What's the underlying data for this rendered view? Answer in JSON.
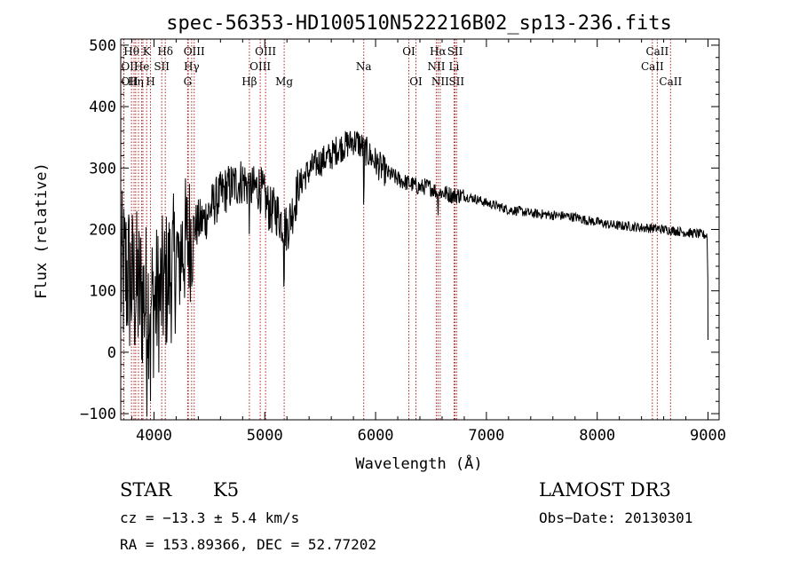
{
  "chart_data": {
    "type": "line",
    "title": "spec-56353-HD100510N522216B02_sp13-236.fits",
    "xlabel": "Wavelength (Å)",
    "ylabel": "Flux (relative)",
    "xlim": [
      3700,
      9100
    ],
    "ylim": [
      -110,
      510
    ],
    "xticks": [
      4000,
      5000,
      6000,
      7000,
      8000,
      9000
    ],
    "yticks": [
      -100,
      0,
      100,
      200,
      300,
      400,
      500
    ],
    "line_color": "#000000",
    "marker_color": "#b22222",
    "spectrum_profile": {
      "x": [
        3700,
        3750,
        3800,
        3850,
        3900,
        3950,
        4000,
        4050,
        4100,
        4150,
        4200,
        4250,
        4300,
        4350,
        4400,
        4450,
        4500,
        4550,
        4600,
        4650,
        4700,
        4750,
        4800,
        4850,
        4900,
        4950,
        5000,
        5050,
        5100,
        5150,
        5200,
        5250,
        5300,
        5350,
        5400,
        5450,
        5500,
        5550,
        5600,
        5650,
        5700,
        5750,
        5800,
        5850,
        5900,
        5950,
        6000,
        6050,
        6100,
        6150,
        6200,
        6250,
        6300,
        6350,
        6400,
        6450,
        6500,
        6550,
        6600,
        6650,
        6700,
        6750,
        6800,
        6900,
        7000,
        7100,
        7200,
        7300,
        7400,
        7500,
        7600,
        7700,
        7800,
        7900,
        8000,
        8100,
        8200,
        8300,
        8400,
        8500,
        8600,
        8700,
        8800,
        8900,
        9000
      ],
      "flux": [
        120,
        130,
        110,
        100,
        90,
        85,
        80,
        90,
        110,
        130,
        150,
        170,
        180,
        200,
        210,
        215,
        230,
        245,
        255,
        265,
        270,
        275,
        280,
        270,
        265,
        270,
        250,
        230,
        230,
        215,
        200,
        230,
        265,
        285,
        295,
        305,
        310,
        315,
        320,
        330,
        335,
        340,
        345,
        340,
        330,
        320,
        310,
        300,
        292,
        288,
        282,
        278,
        275,
        272,
        268,
        270,
        268,
        262,
        260,
        258,
        255,
        256,
        254,
        250,
        243,
        238,
        232,
        230,
        226,
        225,
        223,
        222,
        220,
        215,
        212,
        208,
        206,
        205,
        203,
        202,
        200,
        198,
        195,
        193,
        190
      ]
    },
    "lines_row1": [
      {
        "label": "Hθ",
        "x": 3797
      },
      {
        "label": "K",
        "x": 3934
      },
      {
        "label": "Hδ",
        "x": 4102
      },
      {
        "label": "OIII",
        "x": 4363
      },
      {
        "label": "OIII",
        "x": 5007
      },
      {
        "label": "OI",
        "x": 6300
      },
      {
        "label": "Hα",
        "x": 6563
      },
      {
        "label": "SII",
        "x": 6717
      },
      {
        "label": "CaII",
        "x": 8542
      }
    ],
    "lines_row2": [
      {
        "label": "OII",
        "x": 3727
      },
      {
        "label": "He",
        "x": 3889
      },
      {
        "label": "SII",
        "x": 4070
      },
      {
        "label": "Hγ",
        "x": 4340
      },
      {
        "label": "OIII",
        "x": 4959
      },
      {
        "label": "Na",
        "x": 5893
      },
      {
        "label": "NII",
        "x": 6548
      },
      {
        "label": "Li",
        "x": 6708
      },
      {
        "label": "CaII",
        "x": 8498
      }
    ],
    "lines_row3": [
      {
        "label": "OII",
        "x": 3729
      },
      {
        "label": "Hη",
        "x": 3835
      },
      {
        "label": "H",
        "x": 3969
      },
      {
        "label": "G",
        "x": 4304
      },
      {
        "label": "Hβ",
        "x": 4861
      },
      {
        "label": "Mg",
        "x": 5175
      },
      {
        "label": "OI",
        "x": 6364
      },
      {
        "label": "NII",
        "x": 6583
      },
      {
        "label": "SII",
        "x": 6731
      },
      {
        "label": "CaII",
        "x": 8662
      }
    ],
    "extra_marker_lines": [
      3820,
      3860,
      3900,
      4310
    ]
  },
  "info": {
    "object_class": "STAR",
    "subclass": "K5",
    "survey": "LAMOST DR3",
    "cz": "cz = −13.3 ± 5.4 km/s",
    "obs_date": "Obs−Date: 20130301",
    "coords": "RA = 153.89366, DEC =  52.77202"
  }
}
